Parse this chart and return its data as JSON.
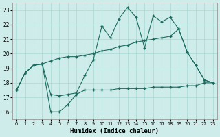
{
  "xlabel": "Humidex (Indice chaleur)",
  "bg_color": "#ceecea",
  "grid_color": "#a8d8d4",
  "line_color": "#1a6b5e",
  "xlim": [
    -0.5,
    23.5
  ],
  "ylim": [
    15.5,
    23.5
  ],
  "xticks": [
    0,
    1,
    2,
    3,
    4,
    5,
    6,
    7,
    8,
    9,
    10,
    11,
    12,
    13,
    14,
    15,
    16,
    17,
    18,
    19,
    20,
    21,
    22,
    23
  ],
  "yticks": [
    16,
    17,
    18,
    19,
    20,
    21,
    22,
    23
  ],
  "line1_x": [
    0,
    1,
    2,
    3,
    4,
    5,
    6,
    7,
    8,
    9,
    10,
    11,
    12,
    13,
    14,
    15,
    16,
    17,
    18,
    19,
    20,
    21,
    22,
    23
  ],
  "line1_y": [
    17.5,
    18.7,
    19.2,
    19.3,
    17.2,
    17.1,
    17.2,
    17.3,
    18.5,
    19.6,
    21.9,
    21.1,
    22.4,
    23.2,
    22.5,
    20.4,
    22.6,
    22.2,
    22.5,
    21.7,
    20.1,
    19.2,
    18.2,
    18.0
  ],
  "line2_x": [
    0,
    1,
    2,
    3,
    4,
    5,
    6,
    7,
    8,
    9,
    10,
    11,
    12,
    13,
    14,
    15,
    16,
    17,
    18,
    19,
    20,
    21,
    22,
    23
  ],
  "line2_y": [
    17.5,
    18.7,
    19.2,
    19.3,
    19.5,
    19.7,
    19.8,
    19.8,
    19.9,
    20.0,
    20.2,
    20.3,
    20.5,
    20.6,
    20.8,
    20.9,
    21.0,
    21.1,
    21.2,
    21.7,
    20.1,
    19.2,
    18.2,
    18.0
  ],
  "line3_x": [
    0,
    1,
    2,
    3,
    4,
    5,
    6,
    7,
    8,
    9,
    10,
    11,
    12,
    13,
    14,
    15,
    16,
    17,
    18,
    19,
    20,
    21,
    22,
    23
  ],
  "line3_y": [
    17.5,
    18.7,
    19.2,
    19.3,
    16.0,
    16.0,
    16.5,
    17.2,
    17.5,
    17.5,
    17.5,
    17.5,
    17.6,
    17.6,
    17.6,
    17.6,
    17.7,
    17.7,
    17.7,
    17.7,
    17.8,
    17.8,
    18.0,
    18.0
  ]
}
